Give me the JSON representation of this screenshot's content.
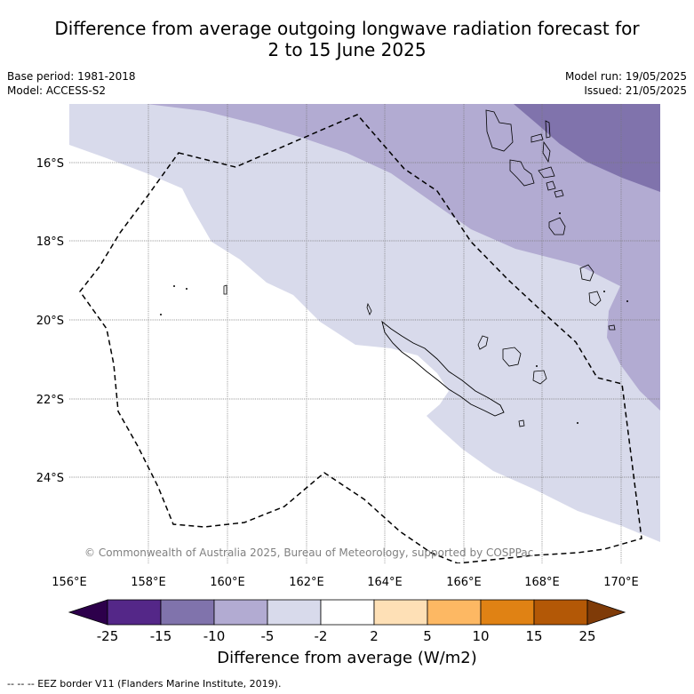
{
  "title_line1": "Difference from average outgoing longwave radiation forecast for",
  "title_line2": "2 to 15 June 2025",
  "base_period": "Base period: 1981-2018",
  "model": "Model: ACCESS-S2",
  "model_run": "Model run: 19/05/2025",
  "issued": "Issued: 21/05/2025",
  "copyright": "© Commonwealth of Australia 2025, Bureau of Meteorology, supported by COSPPac",
  "lat_labels": [
    "16°S",
    "18°S",
    "20°S",
    "22°S",
    "24°S"
  ],
  "lon_labels": [
    "156°E",
    "158°E",
    "160°E",
    "162°E",
    "164°E",
    "166°E",
    "168°E",
    "170°E"
  ],
  "colorbar": {
    "label": "Difference from average (W/m2)",
    "ticks": [
      "-25",
      "-15",
      "-10",
      "-5",
      "-2",
      "2",
      "5",
      "10",
      "15",
      "25"
    ],
    "colors": [
      "#2d004b",
      "#542788",
      "#8073ac",
      "#b2abd2",
      "#d8daeb",
      "#ffffff",
      "#fee0b6",
      "#fdb863",
      "#e08214",
      "#b35806",
      "#7f3b08"
    ]
  },
  "footer": "--  --  -- EEZ border V11 (Flanders Marine Institute, 2019)."
}
